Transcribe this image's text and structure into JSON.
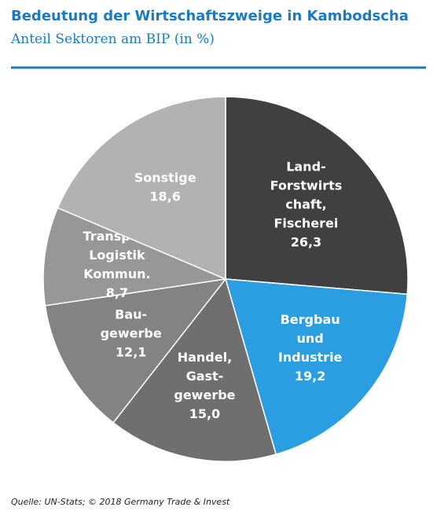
{
  "chart_data": {
    "type": "pie",
    "title": "Bedeutung der Wirtschaftszweige in Kambodscha",
    "subtitle": "Anteil Sektoren am BIP (in %)",
    "categories": [
      [
        "Land-",
        "Forstwirts",
        "chaft,",
        "Fischerei"
      ],
      [
        "Bergbau",
        "und",
        "Industrie"
      ],
      [
        "Handel,",
        "Gast-",
        "gewerbe"
      ],
      [
        "Bau-",
        "gewerbe"
      ],
      [
        "Transport",
        "Logistik",
        "Kommun."
      ],
      [
        "Sonstige"
      ]
    ],
    "values": [
      26.3,
      19.2,
      15.0,
      12.1,
      8.7,
      18.6
    ],
    "value_labels": [
      "26,3",
      "19,2",
      "15,0",
      "12,1",
      "8,7",
      "18,6"
    ],
    "colors": [
      "#404040",
      "#2a9ee0",
      "#6f6f6f",
      "#838383",
      "#979797",
      "#b2b2b2"
    ],
    "source": "Quelle:  UN-Stats; © 2018 Germany Trade & Invest"
  }
}
